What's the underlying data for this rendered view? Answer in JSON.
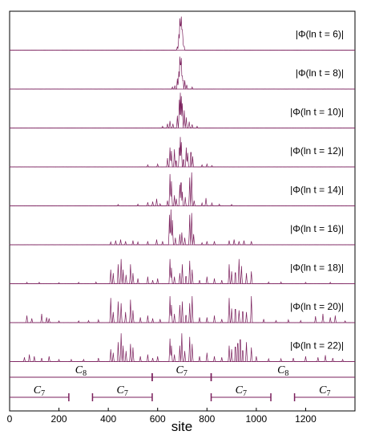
{
  "chart_data": {
    "type": "line",
    "xlabel": "site",
    "xlim": [
      0,
      1400
    ],
    "xticks": [
      "0",
      "200",
      "400",
      "600",
      "800",
      "1000",
      "1200"
    ],
    "color": "#7a1f5c",
    "series": [
      {
        "name": "|Φ(ln t = 6)|",
        "peaks": [
          [
            686,
            0.45
          ],
          [
            690,
            0.9
          ],
          [
            693,
            1.0
          ],
          [
            696,
            0.95
          ],
          [
            699,
            0.85
          ],
          [
            702,
            0.4
          ],
          [
            707,
            0.15
          ],
          [
            680,
            0.1
          ]
        ]
      },
      {
        "name": "|Φ(ln t = 8)|",
        "peaks": [
          [
            670,
            0.1
          ],
          [
            680,
            0.3
          ],
          [
            686,
            0.5
          ],
          [
            690,
            0.92
          ],
          [
            693,
            1.0
          ],
          [
            696,
            0.88
          ],
          [
            699,
            0.55
          ],
          [
            703,
            0.35
          ],
          [
            710,
            0.25
          ],
          [
            718,
            0.12
          ],
          [
            660,
            0.06
          ],
          [
            740,
            0.06
          ]
        ]
      },
      {
        "name": "|Φ(ln t = 10)|",
        "peaks": [
          [
            620,
            0.05
          ],
          [
            640,
            0.12
          ],
          [
            650,
            0.2
          ],
          [
            662,
            0.12
          ],
          [
            680,
            0.35
          ],
          [
            688,
            0.8
          ],
          [
            692,
            1.0
          ],
          [
            696,
            0.9
          ],
          [
            700,
            0.7
          ],
          [
            708,
            0.5
          ],
          [
            716,
            0.3
          ],
          [
            728,
            0.18
          ],
          [
            740,
            0.1
          ],
          [
            760,
            0.05
          ]
        ]
      },
      {
        "name": "|Φ(ln t = 12)|",
        "peaks": [
          [
            560,
            0.06
          ],
          [
            600,
            0.08
          ],
          [
            640,
            0.25
          ],
          [
            650,
            0.55
          ],
          [
            656,
            0.45
          ],
          [
            668,
            0.5
          ],
          [
            675,
            0.25
          ],
          [
            688,
            0.55
          ],
          [
            692,
            0.85
          ],
          [
            696,
            0.7
          ],
          [
            705,
            0.3
          ],
          [
            716,
            0.55
          ],
          [
            722,
            0.4
          ],
          [
            735,
            0.6
          ],
          [
            742,
            0.3
          ],
          [
            780,
            0.06
          ],
          [
            800,
            0.08
          ],
          [
            820,
            0.04
          ]
        ]
      },
      {
        "name": "|Φ(ln t = 14)|",
        "peaks": [
          [
            440,
            0.04
          ],
          [
            520,
            0.05
          ],
          [
            560,
            0.1
          ],
          [
            580,
            0.12
          ],
          [
            596,
            0.2
          ],
          [
            610,
            0.06
          ],
          [
            640,
            0.15
          ],
          [
            650,
            0.9
          ],
          [
            656,
            0.7
          ],
          [
            668,
            0.3
          ],
          [
            676,
            0.2
          ],
          [
            690,
            0.6
          ],
          [
            695,
            0.95
          ],
          [
            700,
            0.4
          ],
          [
            712,
            0.25
          ],
          [
            730,
            0.8
          ],
          [
            738,
            0.95
          ],
          [
            748,
            0.15
          ],
          [
            780,
            0.08
          ],
          [
            796,
            0.22
          ],
          [
            820,
            0.08
          ],
          [
            850,
            0.05
          ],
          [
            900,
            0.04
          ]
        ]
      },
      {
        "name": "|Φ(ln t = 16)|",
        "peaks": [
          [
            410,
            0.08
          ],
          [
            430,
            0.12
          ],
          [
            450,
            0.15
          ],
          [
            470,
            0.1
          ],
          [
            500,
            0.12
          ],
          [
            520,
            0.08
          ],
          [
            560,
            0.1
          ],
          [
            596,
            0.15
          ],
          [
            620,
            0.1
          ],
          [
            648,
            0.85
          ],
          [
            654,
            1.0
          ],
          [
            660,
            0.7
          ],
          [
            672,
            0.2
          ],
          [
            690,
            0.3
          ],
          [
            698,
            0.35
          ],
          [
            710,
            0.2
          ],
          [
            730,
            0.85
          ],
          [
            738,
            0.9
          ],
          [
            746,
            0.3
          ],
          [
            780,
            0.06
          ],
          [
            800,
            0.1
          ],
          [
            830,
            0.1
          ],
          [
            890,
            0.12
          ],
          [
            910,
            0.15
          ],
          [
            930,
            0.1
          ],
          [
            950,
            0.12
          ],
          [
            980,
            0.1
          ]
        ]
      },
      {
        "name": "|Φ(ln t = 18)|",
        "peaks": [
          [
            70,
            0.04
          ],
          [
            120,
            0.04
          ],
          [
            200,
            0.03
          ],
          [
            280,
            0.04
          ],
          [
            350,
            0.05
          ],
          [
            410,
            0.4
          ],
          [
            420,
            0.3
          ],
          [
            440,
            0.55
          ],
          [
            452,
            0.7
          ],
          [
            460,
            0.4
          ],
          [
            472,
            0.25
          ],
          [
            490,
            0.55
          ],
          [
            500,
            0.3
          ],
          [
            520,
            0.15
          ],
          [
            560,
            0.2
          ],
          [
            580,
            0.1
          ],
          [
            600,
            0.15
          ],
          [
            650,
            0.7
          ],
          [
            656,
            0.45
          ],
          [
            668,
            0.2
          ],
          [
            690,
            0.3
          ],
          [
            700,
            0.55
          ],
          [
            715,
            0.3
          ],
          [
            730,
            0.65
          ],
          [
            740,
            0.4
          ],
          [
            770,
            0.1
          ],
          [
            800,
            0.2
          ],
          [
            830,
            0.15
          ],
          [
            860,
            0.1
          ],
          [
            890,
            0.55
          ],
          [
            900,
            0.35
          ],
          [
            915,
            0.45
          ],
          [
            930,
            0.7
          ],
          [
            940,
            0.5
          ],
          [
            960,
            0.3
          ],
          [
            980,
            0.35
          ],
          [
            1050,
            0.05
          ],
          [
            1100,
            0.05
          ],
          [
            1200,
            0.04
          ],
          [
            1300,
            0.04
          ]
        ]
      },
      {
        "name": "|Φ(ln t = 20)|",
        "peaks": [
          [
            70,
            0.2
          ],
          [
            90,
            0.12
          ],
          [
            130,
            0.25
          ],
          [
            150,
            0.15
          ],
          [
            160,
            0.12
          ],
          [
            200,
            0.05
          ],
          [
            280,
            0.05
          ],
          [
            320,
            0.06
          ],
          [
            360,
            0.08
          ],
          [
            410,
            0.7
          ],
          [
            420,
            0.3
          ],
          [
            440,
            0.6
          ],
          [
            452,
            0.55
          ],
          [
            470,
            0.3
          ],
          [
            490,
            0.65
          ],
          [
            500,
            0.35
          ],
          [
            530,
            0.15
          ],
          [
            560,
            0.2
          ],
          [
            580,
            0.12
          ],
          [
            610,
            0.1
          ],
          [
            650,
            0.75
          ],
          [
            656,
            0.5
          ],
          [
            668,
            0.25
          ],
          [
            690,
            0.5
          ],
          [
            700,
            0.6
          ],
          [
            715,
            0.3
          ],
          [
            730,
            0.55
          ],
          [
            740,
            0.75
          ],
          [
            770,
            0.15
          ],
          [
            800,
            0.15
          ],
          [
            830,
            0.2
          ],
          [
            860,
            0.1
          ],
          [
            890,
            0.7
          ],
          [
            900,
            0.4
          ],
          [
            915,
            0.55
          ],
          [
            930,
            0.35
          ],
          [
            945,
            0.45
          ],
          [
            960,
            0.3
          ],
          [
            980,
            0.75
          ],
          [
            1030,
            0.1
          ],
          [
            1080,
            0.06
          ],
          [
            1130,
            0.08
          ],
          [
            1180,
            0.06
          ],
          [
            1240,
            0.18
          ],
          [
            1270,
            0.25
          ],
          [
            1300,
            0.15
          ],
          [
            1320,
            0.2
          ],
          [
            1360,
            0.05
          ]
        ]
      },
      {
        "name": "|Φ(ln t = 22)|",
        "peaks": [
          [
            60,
            0.12
          ],
          [
            80,
            0.2
          ],
          [
            100,
            0.15
          ],
          [
            130,
            0.1
          ],
          [
            160,
            0.15
          ],
          [
            200,
            0.06
          ],
          [
            250,
            0.06
          ],
          [
            300,
            0.06
          ],
          [
            360,
            0.1
          ],
          [
            410,
            0.35
          ],
          [
            420,
            0.25
          ],
          [
            440,
            0.55
          ],
          [
            452,
            0.8
          ],
          [
            460,
            0.45
          ],
          [
            472,
            0.3
          ],
          [
            490,
            0.5
          ],
          [
            500,
            0.4
          ],
          [
            530,
            0.15
          ],
          [
            560,
            0.2
          ],
          [
            580,
            0.1
          ],
          [
            600,
            0.15
          ],
          [
            650,
            0.65
          ],
          [
            656,
            0.45
          ],
          [
            668,
            0.2
          ],
          [
            690,
            0.45
          ],
          [
            698,
            0.8
          ],
          [
            710,
            0.3
          ],
          [
            730,
            0.7
          ],
          [
            740,
            0.5
          ],
          [
            770,
            0.15
          ],
          [
            800,
            0.25
          ],
          [
            830,
            0.15
          ],
          [
            860,
            0.12
          ],
          [
            890,
            0.45
          ],
          [
            900,
            0.35
          ],
          [
            915,
            0.6
          ],
          [
            925,
            0.75
          ],
          [
            935,
            0.9
          ],
          [
            945,
            0.45
          ],
          [
            960,
            0.55
          ],
          [
            980,
            0.4
          ],
          [
            1000,
            0.15
          ],
          [
            1050,
            0.08
          ],
          [
            1100,
            0.08
          ],
          [
            1150,
            0.1
          ],
          [
            1200,
            0.15
          ],
          [
            1250,
            0.12
          ],
          [
            1280,
            0.18
          ],
          [
            1310,
            0.1
          ],
          [
            1350,
            0.06
          ]
        ]
      }
    ],
    "cluster_rows": [
      {
        "segments": [
          {
            "label": "C8",
            "from": 0,
            "to": 578
          },
          {
            "label": "C7",
            "from": 578,
            "to": 817
          },
          {
            "label": "C8",
            "from": 817,
            "to": 1400
          }
        ]
      },
      {
        "segments": [
          {
            "label": "C7",
            "from": 0,
            "to": 240
          },
          {
            "label": "C7",
            "from": 336,
            "to": 578
          },
          {
            "label": "C7",
            "from": 817,
            "to": 1059
          },
          {
            "label": "C7",
            "from": 1155,
            "to": 1400
          }
        ]
      }
    ]
  }
}
